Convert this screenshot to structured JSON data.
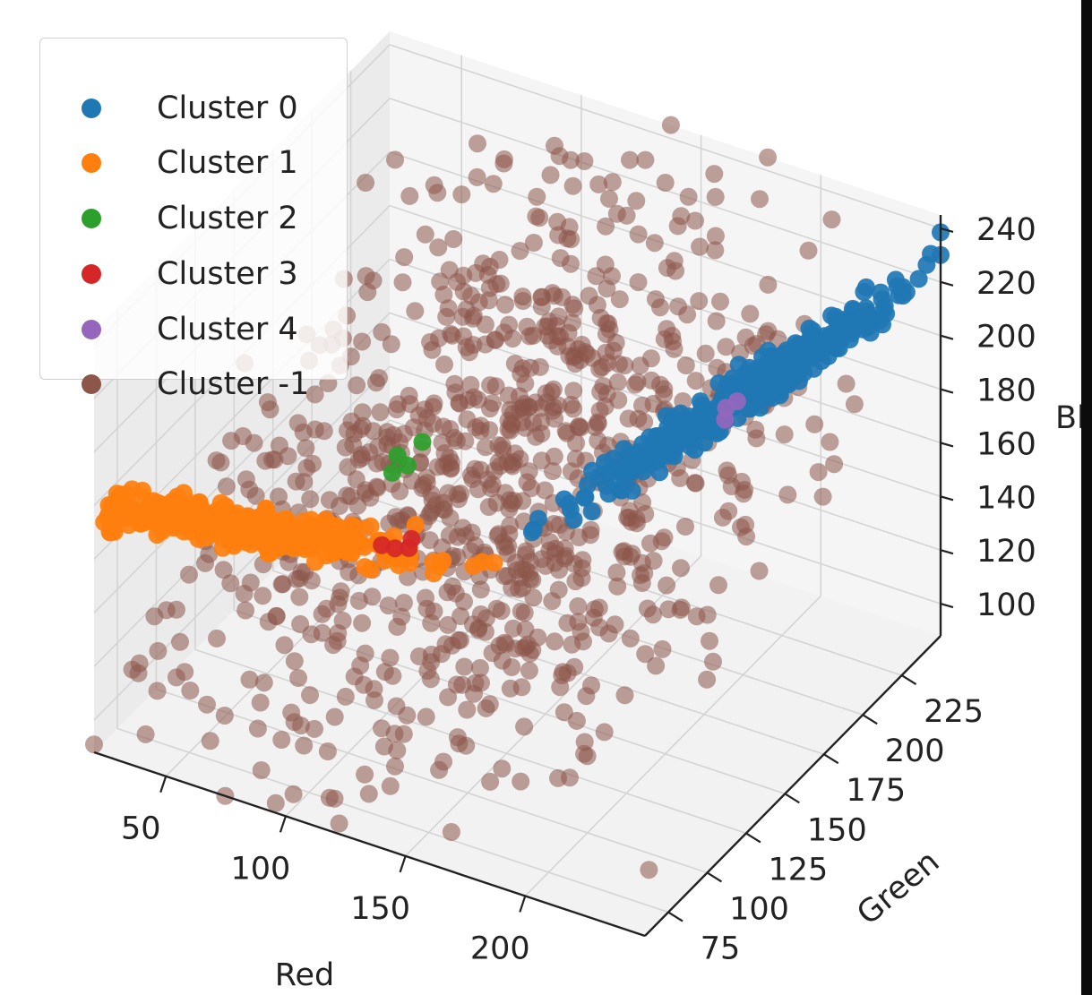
{
  "chart_data": {
    "type": "scatter",
    "projection": "3d",
    "title": "",
    "xlabel": "Red",
    "ylabel": "Green",
    "zlabel": "Bl",
    "x_ticks": [
      "50",
      "100",
      "150",
      "200"
    ],
    "y_ticks": [
      "75",
      "100",
      "125",
      "150",
      "175",
      "200",
      "225"
    ],
    "z_ticks": [
      "100",
      "120",
      "140",
      "160",
      "180",
      "200",
      "220",
      "240"
    ],
    "xlim": [
      20,
      250
    ],
    "ylim": [
      60,
      250
    ],
    "zlim": [
      88,
      245
    ],
    "grid": true,
    "legend_position": "top-left",
    "series": [
      {
        "name": "Cluster 0",
        "color": "#1f77b4",
        "center": [
          198,
          205,
          190
        ],
        "spread": [
          22,
          18,
          16
        ],
        "axis": [
          1,
          0.95,
          1.0
        ],
        "count": 420
      },
      {
        "name": "Cluster 1",
        "color": "#ff7f0e",
        "center": [
          68,
          80,
          175
        ],
        "spread": [
          35,
          15,
          12
        ],
        "axis": [
          1,
          0.2,
          0.3
        ],
        "count": 430
      },
      {
        "name": "Cluster 2",
        "color": "#2ca02c",
        "center": [
          105,
          120,
          183
        ],
        "spread": [
          2,
          2,
          2
        ],
        "axis": [
          1,
          1,
          1
        ],
        "count": 4
      },
      {
        "name": "Cluster 3",
        "color": "#d62728",
        "center": [
          110,
          115,
          160
        ],
        "spread": [
          2,
          2,
          2
        ],
        "axis": [
          1,
          1,
          1
        ],
        "count": 4
      },
      {
        "name": "Cluster 4",
        "color": "#9467bd",
        "center": [
          190,
          205,
          185
        ],
        "spread": [
          2,
          2,
          2
        ],
        "axis": [
          1,
          1,
          1
        ],
        "count": 3
      },
      {
        "name": "Cluster -1",
        "color": "#8c564b",
        "center": [
          130,
          150,
          170
        ],
        "spread": [
          55,
          50,
          30
        ],
        "axis": [
          0,
          0,
          0
        ],
        "count": 900
      }
    ]
  }
}
